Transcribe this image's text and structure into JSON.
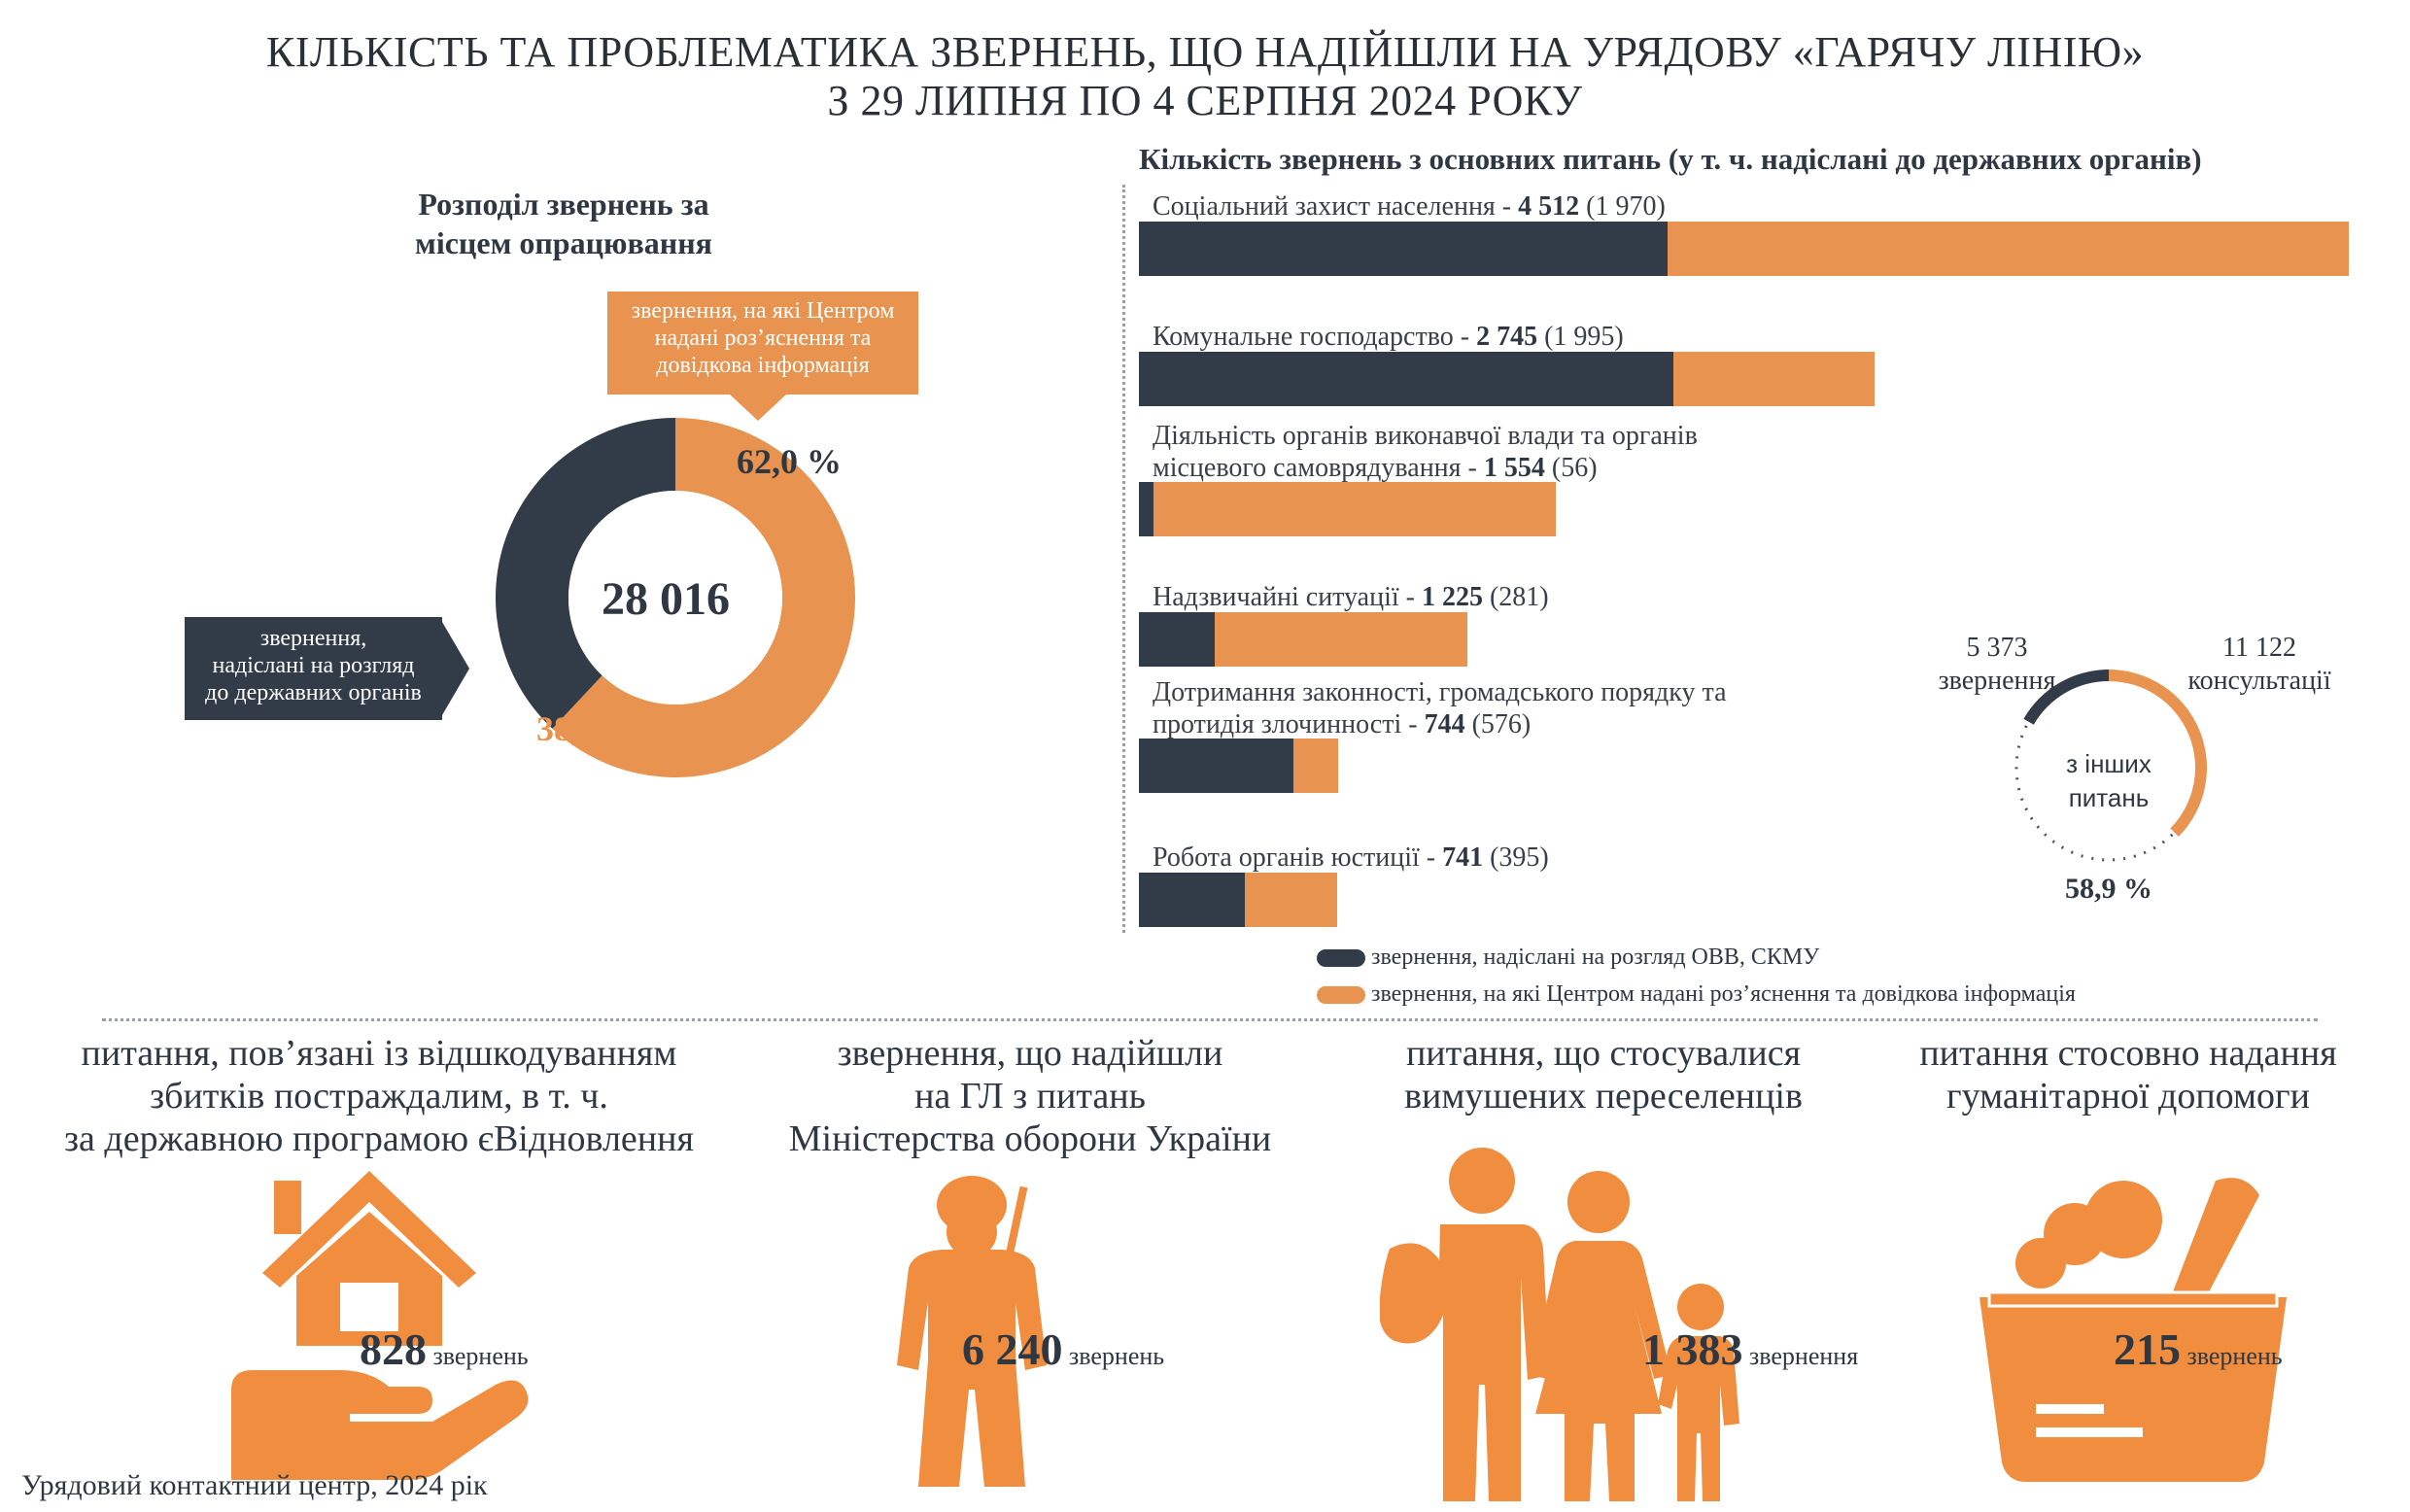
{
  "title": {
    "line1": "КІЛЬКІСТЬ ТА ПРОБЛЕМАТИКА ЗВЕРНЕНЬ, ЩО НАДІЙШЛИ НА УРЯДОВУ «ГАРЯЧУ ЛІНІЮ»",
    "line2": "З 29 ЛИПНЯ ПО 4 СЕРПНЯ 2024 РОКУ"
  },
  "donut": {
    "title_line1": "Розподіл звернень за",
    "title_line2": "місцем опрацювання",
    "total": "28 016",
    "orange_pct_label": "62,0 %",
    "dark_pct_label": "38,0 %",
    "orange_callout": [
      "звернення, на які Центром",
      "надані роз’яснення та",
      "довідкова інформація"
    ],
    "dark_callout": [
      "звернення,",
      "надіслані на розгляд",
      "до державних органів"
    ]
  },
  "bars": {
    "title": "Кількість звернень з основних питань (у т. ч. надіслані до державних органів)"
  },
  "small_donut": {
    "left_value": "5 373",
    "left_label": "звернення",
    "right_value": "11 122",
    "right_label": "консультації",
    "center_line1": "з інших",
    "center_line2": "питань",
    "pct_label": "58,9 %"
  },
  "legend": {
    "dark": "звернення, надіслані на розгляд ОВВ, СКМУ",
    "orange": "звернення, на які Центром надані роз’яснення та довідкова інформація"
  },
  "categories": [
    {
      "title": [
        "питання, пов’язані із відшкодуванням",
        "збитків постраждалим, в т. ч.",
        "за державною програмою єВідновлення"
      ],
      "number": "828",
      "unit": "звернень",
      "icon": "house-hand-icon"
    },
    {
      "title": [
        "звернення, що надійшли",
        "на ГЛ з питань",
        "Міністерства оборони України"
      ],
      "number": "6 240",
      "unit": "звернень",
      "icon": "soldier-icon"
    },
    {
      "title": [
        "питання, що стосувалися",
        "вимушених переселенців"
      ],
      "number": "1 383",
      "unit": "звернення",
      "icon": "family-icon"
    },
    {
      "title": [
        "питання стосовно надання",
        "гуманітарної допомоги"
      ],
      "number": "215",
      "unit": "звернень",
      "icon": "grocery-basket-icon"
    }
  ],
  "footer": "Урядовий контактний центр, 2024 рік",
  "colors": {
    "dark": "#323b48",
    "orange": "#e8934f"
  },
  "chart_data": [
    {
      "type": "pie",
      "title": "Розподіл звернень за місцем опрацювання",
      "total": 28016,
      "slices": [
        {
          "name": "звернення, на які Центром надані роз’яснення та довідкова інформація",
          "value": 62.0
        },
        {
          "name": "звернення, надіслані на розгляд до державних органів",
          "value": 38.0
        }
      ]
    },
    {
      "type": "bar",
      "orientation": "horizontal",
      "stacked": true,
      "title": "Кількість звернень з основних питань (у т. ч. надіслані до державних органів)",
      "categories": [
        "Соціальний захист населення",
        "Комунальне господарство",
        "Діяльність органів виконавчої влади та органів місцевого самоврядування",
        "Надзвичайні ситуації",
        "Дотримання законності, громадського порядку та протидія злочинності",
        "Робота органів юстиції"
      ],
      "totals": [
        4512,
        2745,
        1554,
        1225,
        744,
        741
      ],
      "total_labels": [
        "4 512",
        "2 745",
        "1 554",
        "1 225",
        "744",
        "741"
      ],
      "series": [
        {
          "name": "звернення, надіслані на розгляд ОВВ, СКМУ",
          "values": [
            1970,
            1995,
            56,
            281,
            576,
            395
          ]
        },
        {
          "name": "звернення, на які Центром надані роз’яснення та довідкова інформація",
          "values": [
            2542,
            750,
            1498,
            944,
            168,
            346
          ]
        }
      ]
    },
    {
      "type": "pie",
      "title": "з інших питань",
      "slices": [
        {
          "name": "звернення",
          "value": 5373
        },
        {
          "name": "консультації",
          "value": 11122
        }
      ],
      "pct_label": "58,9 %"
    }
  ]
}
